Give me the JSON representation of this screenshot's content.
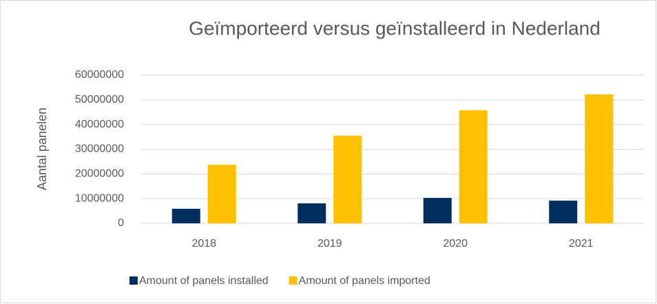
{
  "chart_data": {
    "type": "bar",
    "title": "Geïmporteerd versus geïnstalleerd in Nederland",
    "y_label": "Aantal panelen",
    "categories": [
      "2018",
      "2019",
      "2020",
      "2021"
    ],
    "series": [
      {
        "name": "Amount of panels installed",
        "color": "#002f5f",
        "values": [
          5900000,
          8100000,
          10300000,
          9200000
        ]
      },
      {
        "name": "Amount of panels imported",
        "color": "#ffc000",
        "values": [
          23700000,
          35500000,
          45800000,
          52200000
        ]
      }
    ],
    "ylim": [
      0,
      60000000
    ],
    "yticks": [
      0,
      10000000,
      20000000,
      30000000,
      40000000,
      50000000,
      60000000
    ],
    "grid": true,
    "legend": "bottom"
  }
}
